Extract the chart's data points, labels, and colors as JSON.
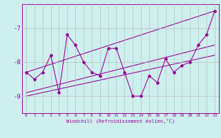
{
  "title": "",
  "xlabel": "Windchill (Refroidissement éolien,°C)",
  "ylabel": "",
  "background_color": "#cdf0ee",
  "line_color": "#990099",
  "grid_color": "#bbbbbb",
  "xlim": [
    -0.5,
    23.5
  ],
  "ylim": [
    -9.5,
    -6.3
  ],
  "yticks": [
    -9,
    -8,
    -7
  ],
  "xticks": [
    0,
    1,
    2,
    3,
    4,
    5,
    6,
    7,
    8,
    9,
    10,
    11,
    12,
    13,
    14,
    15,
    16,
    17,
    18,
    19,
    20,
    21,
    22,
    23
  ],
  "series": [
    {
      "x": [
        0,
        1,
        2,
        3,
        4,
        5,
        6,
        7,
        8,
        9,
        10,
        11,
        12,
        13,
        14,
        15,
        16,
        17,
        18,
        19,
        20,
        21,
        22,
        23
      ],
      "y": [
        -8.3,
        -8.5,
        -8.3,
        -7.8,
        -8.9,
        -7.2,
        -7.5,
        -8.0,
        -8.3,
        -8.4,
        -7.6,
        -7.6,
        -8.3,
        -9.0,
        -9.0,
        -8.4,
        -8.6,
        -7.9,
        -8.3,
        -8.1,
        -8.0,
        -7.5,
        -7.2,
        -6.5
      ]
    },
    {
      "x": [
        0,
        23
      ],
      "y": [
        -8.3,
        -6.5
      ]
    },
    {
      "x": [
        0,
        23
      ],
      "y": [
        -9.0,
        -7.8
      ]
    },
    {
      "x": [
        0,
        23
      ],
      "y": [
        -8.9,
        -7.5
      ]
    }
  ]
}
